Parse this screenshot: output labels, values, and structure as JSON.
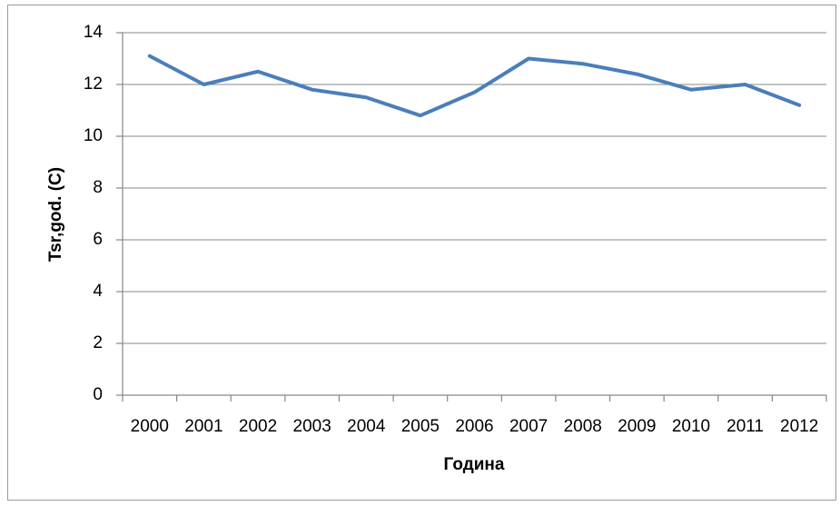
{
  "chart_data": {
    "type": "line",
    "x_label": "Година",
    "y_label": "Tsr,god. (C)",
    "categories": [
      "2000",
      "2001",
      "2002",
      "2003",
      "2004",
      "2005",
      "2006",
      "2007",
      "2008",
      "2009",
      "2010",
      "2011",
      "2012"
    ],
    "series": [
      {
        "name": "Tsr,god. (C)",
        "color": "#4a7ebb",
        "values": [
          13.1,
          12.0,
          12.5,
          11.8,
          11.5,
          10.8,
          11.7,
          13.0,
          12.8,
          12.4,
          11.8,
          12.0,
          11.2
        ]
      }
    ],
    "ylim": [
      0,
      14
    ],
    "yticks": [
      0,
      2,
      4,
      6,
      8,
      10,
      12,
      14
    ],
    "grid": true
  }
}
